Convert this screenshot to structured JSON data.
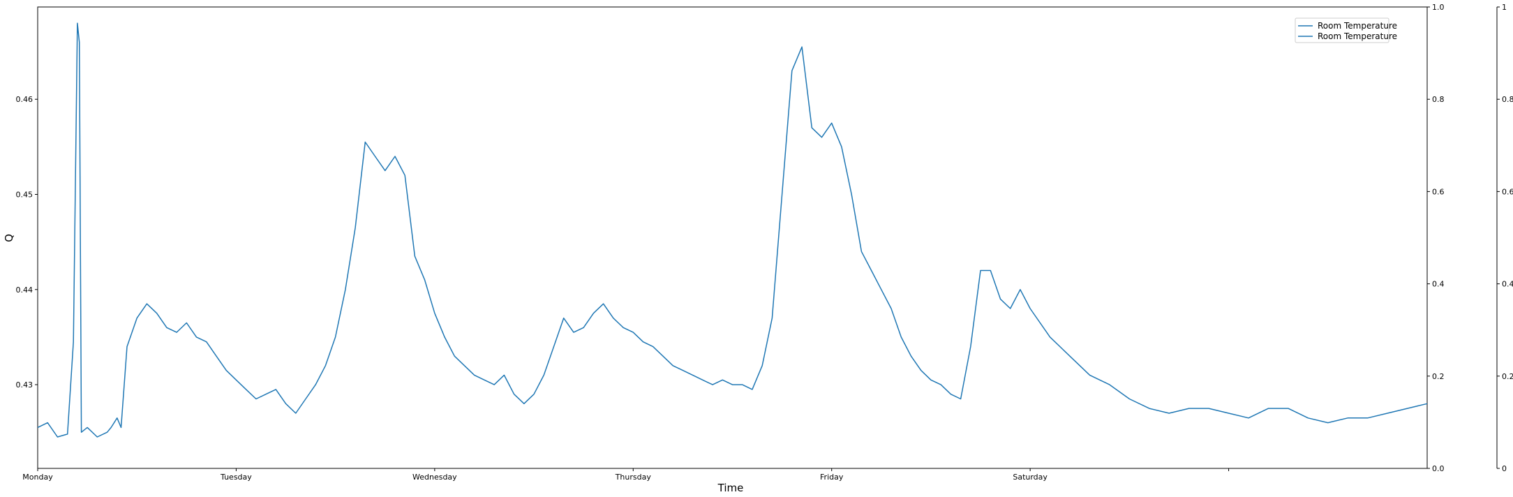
{
  "chart_data": {
    "type": "line",
    "xlabel": "Time",
    "ylabel": "Q",
    "x_ticks": [
      "Monday",
      "Tuesday",
      "Wednesday",
      "Thursday",
      "Friday",
      "Saturday",
      ""
    ],
    "x_range": [
      0,
      7
    ],
    "ylim": [
      0.4212,
      0.4697
    ],
    "y_ticks": [
      0.43,
      0.44,
      0.45,
      0.46
    ],
    "y_tick_labels": [
      "0.43",
      "0.44",
      "0.45",
      "0.46"
    ],
    "right_axis_1": {
      "ylim": [
        0,
        1
      ],
      "ticks": [
        0.0,
        0.2,
        0.4,
        0.6,
        0.8,
        1.0
      ],
      "tick_labels": [
        "0.0",
        "0.2",
        "0.4",
        "0.6",
        "0.8",
        "1.0"
      ]
    },
    "right_axis_2": {
      "ylim": [
        0,
        1
      ],
      "ticks": [
        0,
        0.2,
        0.4,
        0.6,
        0.8,
        1
      ],
      "tick_labels": [
        "0",
        "0.2",
        "0.4",
        "0.6",
        "0.8",
        "1"
      ]
    },
    "legend_position": "top-right",
    "grid": false,
    "series": [
      {
        "name": "Room Temperature",
        "color": "#1f77b4",
        "x": [
          0.0,
          0.05,
          0.1,
          0.15,
          0.18,
          0.2,
          0.21,
          0.22,
          0.25,
          0.3,
          0.35,
          0.37,
          0.4,
          0.42,
          0.45,
          0.5,
          0.55,
          0.6,
          0.65,
          0.7,
          0.75,
          0.8,
          0.85,
          0.9,
          0.95,
          1.0,
          1.05,
          1.1,
          1.15,
          1.2,
          1.25,
          1.3,
          1.35,
          1.4,
          1.45,
          1.5,
          1.55,
          1.6,
          1.65,
          1.7,
          1.75,
          1.8,
          1.85,
          1.9,
          1.95,
          2.0,
          2.05,
          2.1,
          2.15,
          2.2,
          2.25,
          2.3,
          2.35,
          2.4,
          2.45,
          2.5,
          2.55,
          2.6,
          2.65,
          2.7,
          2.75,
          2.8,
          2.85,
          2.9,
          2.95,
          3.0,
          3.05,
          3.1,
          3.15,
          3.2,
          3.25,
          3.3,
          3.35,
          3.4,
          3.45,
          3.5,
          3.55,
          3.6,
          3.65,
          3.7,
          3.75,
          3.8,
          3.85,
          3.9,
          3.95,
          4.0,
          4.05,
          4.1,
          4.15,
          4.2,
          4.25,
          4.3,
          4.35,
          4.4,
          4.45,
          4.5,
          4.55,
          4.6,
          4.65,
          4.7,
          4.75,
          4.8,
          4.85,
          4.9,
          4.95,
          5.0,
          5.1,
          5.2,
          5.3,
          5.4,
          5.5,
          5.6,
          5.7,
          5.8,
          5.9,
          6.0,
          6.1,
          6.2,
          6.3,
          6.4,
          6.5,
          6.6,
          6.7,
          6.8,
          6.9,
          7.0
        ],
        "y": [
          0.4255,
          0.426,
          0.4245,
          0.4248,
          0.4345,
          0.468,
          0.466,
          0.425,
          0.4255,
          0.4245,
          0.425,
          0.4255,
          0.4265,
          0.4255,
          0.434,
          0.437,
          0.4385,
          0.4375,
          0.436,
          0.4355,
          0.4365,
          0.435,
          0.4345,
          0.433,
          0.4315,
          0.4305,
          0.4295,
          0.4285,
          0.429,
          0.4295,
          0.428,
          0.427,
          0.4285,
          0.43,
          0.432,
          0.435,
          0.44,
          0.4465,
          0.4555,
          0.454,
          0.4525,
          0.454,
          0.452,
          0.4435,
          0.441,
          0.4375,
          0.435,
          0.433,
          0.432,
          0.431,
          0.4305,
          0.43,
          0.431,
          0.429,
          0.428,
          0.429,
          0.431,
          0.434,
          0.437,
          0.4355,
          0.436,
          0.4375,
          0.4385,
          0.437,
          0.436,
          0.4355,
          0.4345,
          0.434,
          0.433,
          0.432,
          0.4315,
          0.431,
          0.4305,
          0.43,
          0.4305,
          0.43,
          0.43,
          0.4295,
          0.432,
          0.437,
          0.45,
          0.463,
          0.4655,
          0.457,
          0.456,
          0.4575,
          0.455,
          0.45,
          0.444,
          0.442,
          0.44,
          0.438,
          0.435,
          0.433,
          0.4315,
          0.4305,
          0.43,
          0.429,
          0.4285,
          0.434,
          0.442,
          0.442,
          0.439,
          0.438,
          0.44,
          0.438,
          0.435,
          0.433,
          0.431,
          0.43,
          0.4285,
          0.4275,
          0.427,
          0.4275,
          0.4275,
          0.427,
          0.4265,
          0.4275,
          0.4275,
          0.4265,
          0.426,
          0.4265,
          0.4265,
          0.427,
          0.4275,
          0.428
        ]
      }
    ]
  },
  "legend": {
    "entries": [
      "Room Temperature",
      "Room Temperature"
    ]
  }
}
